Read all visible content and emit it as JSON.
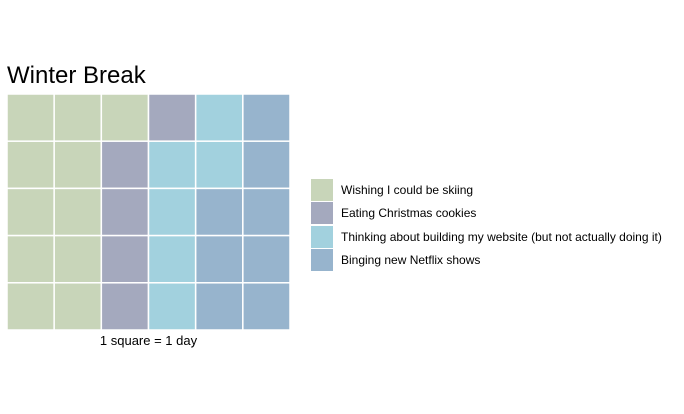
{
  "chart_data": {
    "type": "waffle",
    "title": "Winter Break",
    "caption": "1 square = 1 day",
    "grid": {
      "columns": 6,
      "rows": 5,
      "fill_order": "column-major, top-to-bottom"
    },
    "legend_position": "right",
    "series": [
      {
        "name": "Wishing I could be skiing",
        "value": 11,
        "color": "#c8d5b9"
      },
      {
        "name": "Eating Christmas cookies",
        "value": 5,
        "color": "#a4a9be"
      },
      {
        "name": "Thinking about building my website (but not actually doing it)",
        "value": 6,
        "color": "#a2d1de"
      },
      {
        "name": "Binging new Netflix shows",
        "value": 8,
        "color": "#97b4cd"
      }
    ]
  }
}
